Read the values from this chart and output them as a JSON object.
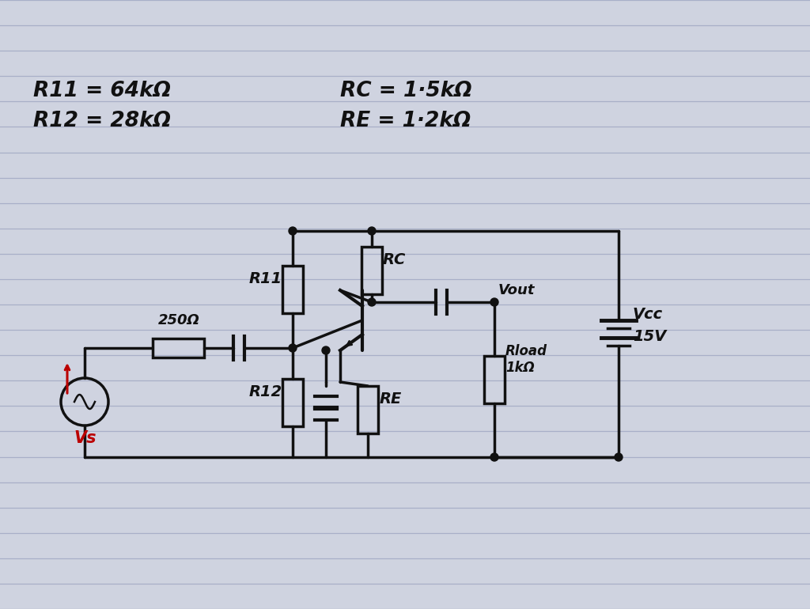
{
  "bg_color": "#cfd3e0",
  "line_color": "#111111",
  "paper_line_color": "#a8afc8",
  "annotations": {
    "R11_eq": "R11 = 64kΩ",
    "R12_eq": "R12 = 28kΩ",
    "RC_eq": "RC = 1·5kΩ",
    "RE_eq": "RE = 1·2kΩ",
    "R11_label": "R11",
    "R12_label": "R12",
    "RC_label": "RC",
    "RE_label": "RE",
    "R250_label": "250Ω",
    "Vout_label": "Vout",
    "Vcc_label": "Vcc",
    "V15_label": "15V",
    "Rload_label": "Rload\n1kΩ",
    "Vs_label": "Vs"
  },
  "figsize": [
    10.24,
    7.7
  ],
  "dpi": 100
}
